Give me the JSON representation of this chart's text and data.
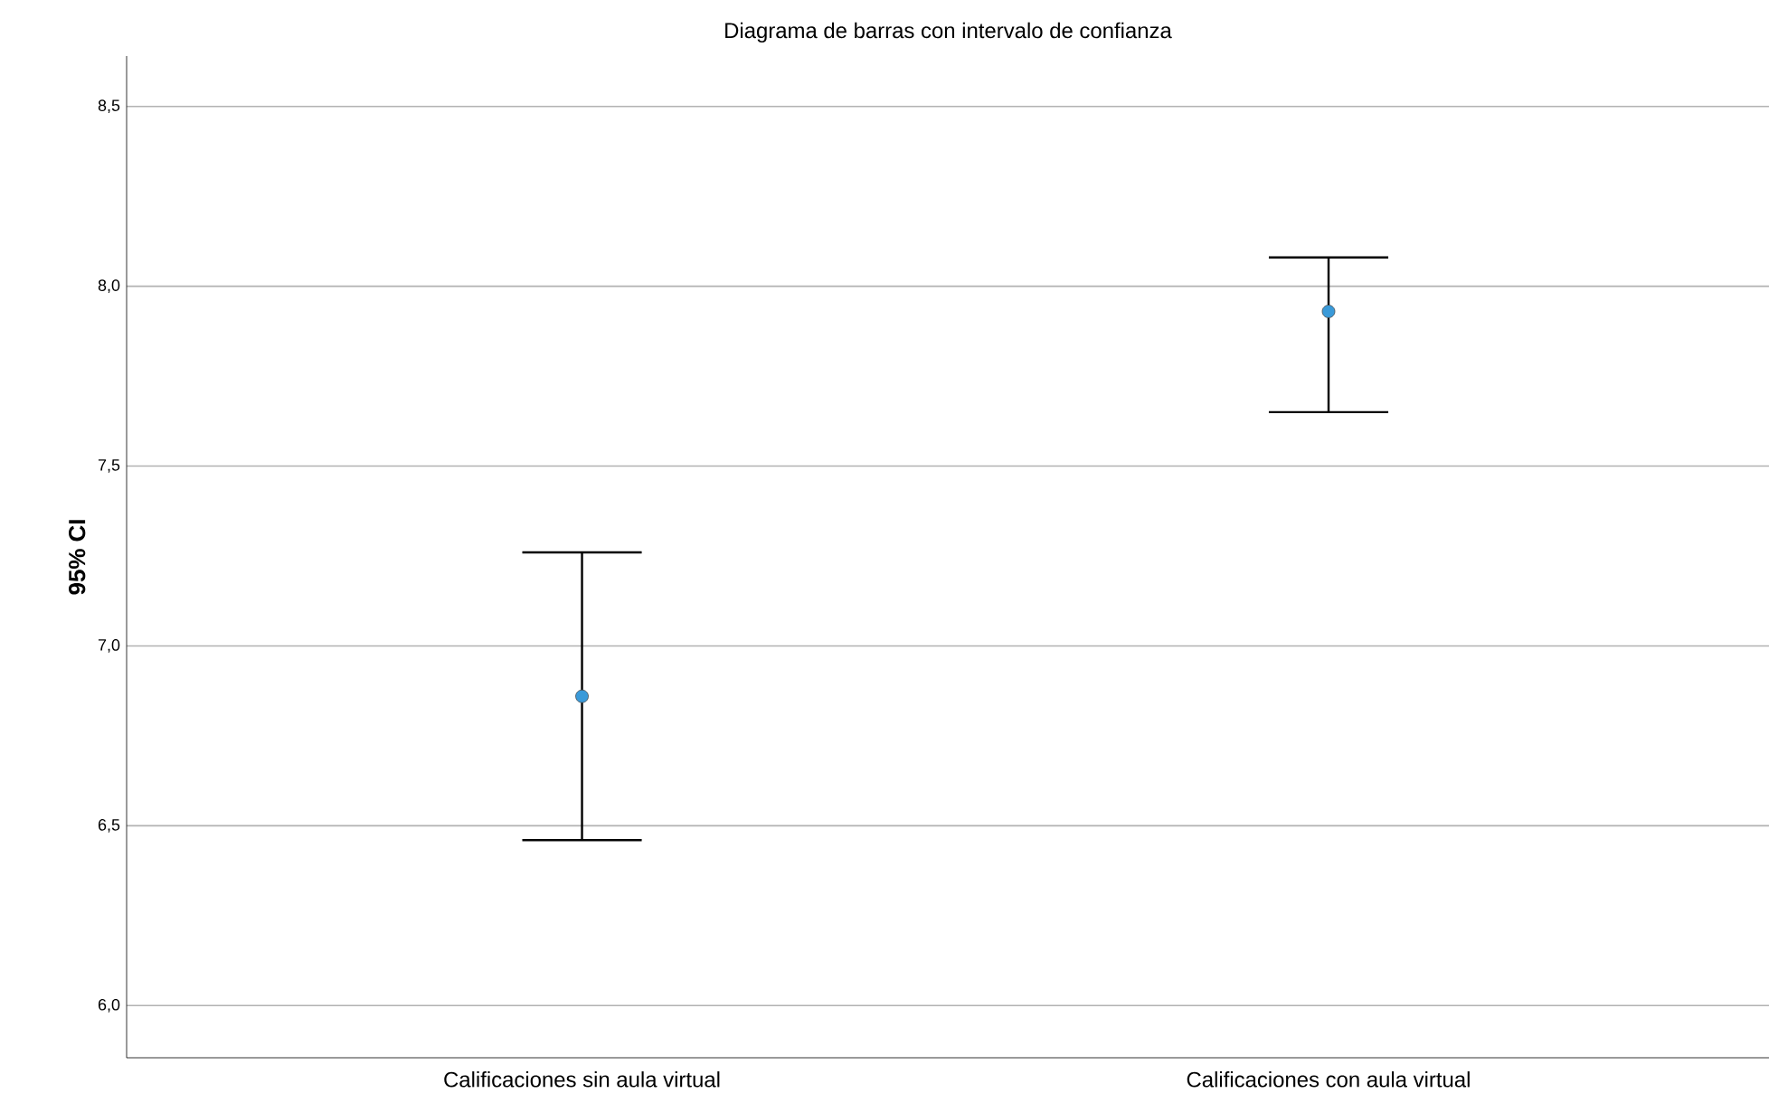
{
  "chart_data": {
    "type": "scatter",
    "title": "Diagrama de barras con intervalo de confianza",
    "ylabel": "95% CI",
    "categories": [
      "Calificaciones sin aula virtual",
      "Calificaciones con aula virtual"
    ],
    "values": [
      6.86,
      7.93
    ],
    "errors": [
      [
        6.46,
        7.26
      ],
      [
        7.65,
        8.08
      ]
    ],
    "color": "#3a9ad9",
    "marker": "circle",
    "ylim": [
      5.855,
      8.64
    ],
    "yticks": [
      {
        "value": 6.0,
        "label": "6,0"
      },
      {
        "value": 6.5,
        "label": "6,5"
      },
      {
        "value": 7.0,
        "label": "7,0"
      },
      {
        "value": 7.5,
        "label": "7,5"
      },
      {
        "value": 8.0,
        "label": "8,0"
      },
      {
        "value": 8.5,
        "label": "8,5"
      }
    ],
    "grid": "y"
  }
}
